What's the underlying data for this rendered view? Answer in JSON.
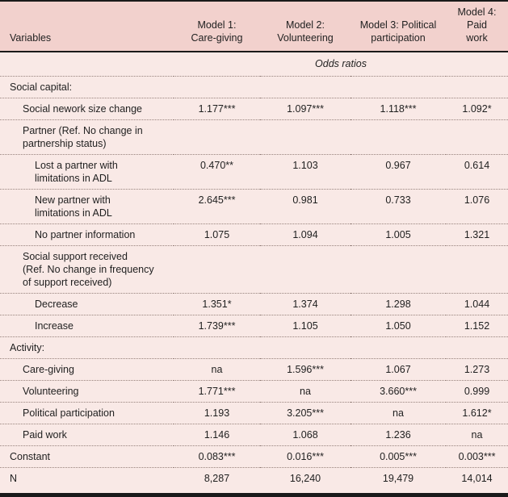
{
  "colors": {
    "header_bg": "#f2d1cd",
    "body_bg": "#f9e9e6",
    "rule_color": "#1a1a1a",
    "dot_color": "#97827c",
    "text_color": "#1f1f1f"
  },
  "table": {
    "columns": [
      "Variables",
      "Model 1:\nCare-giving",
      "Model 2:\nVolunteering",
      "Model 3: Political\nparticipation",
      "Model 4:\nPaid\nwork"
    ],
    "subheader": "Odds ratios",
    "rows": [
      {
        "label": "Social capital:",
        "indent": 0,
        "values": [
          "",
          "",
          "",
          ""
        ]
      },
      {
        "label": "Social nework size change",
        "indent": 1,
        "values": [
          "1.177***",
          "1.097***",
          "1.118***",
          "1.092*"
        ]
      },
      {
        "label": "Partner (Ref. No change in\npartnership status)",
        "indent": 1,
        "values": [
          "",
          "",
          "",
          ""
        ]
      },
      {
        "label": "Lost a partner with\nlimitations in ADL",
        "indent": 2,
        "values": [
          "0.470**",
          "1.103",
          "0.967",
          "0.614"
        ]
      },
      {
        "label": "New partner with\nlimitations in ADL",
        "indent": 2,
        "values": [
          "2.645***",
          "0.981",
          "0.733",
          "1.076"
        ]
      },
      {
        "label": "No partner information",
        "indent": 2,
        "values": [
          "1.075",
          "1.094",
          "1.005",
          "1.321"
        ]
      },
      {
        "label": "Social support received\n(Ref. No change in frequency\nof support received)",
        "indent": 1,
        "values": [
          "",
          "",
          "",
          ""
        ]
      },
      {
        "label": "Decrease",
        "indent": 2,
        "values": [
          "1.351*",
          "1.374",
          "1.298",
          "1.044"
        ]
      },
      {
        "label": "Increase",
        "indent": 2,
        "values": [
          "1.739***",
          "1.105",
          "1.050",
          "1.152"
        ]
      },
      {
        "label": "Activity:",
        "indent": 0,
        "values": [
          "",
          "",
          "",
          ""
        ]
      },
      {
        "label": "Care-giving",
        "indent": 1,
        "values": [
          "na",
          "1.596***",
          "1.067",
          "1.273"
        ]
      },
      {
        "label": "Volunteering",
        "indent": 1,
        "values": [
          "1.771***",
          "na",
          "3.660***",
          "0.999"
        ]
      },
      {
        "label": "Political participation",
        "indent": 1,
        "values": [
          "1.193",
          "3.205***",
          "na",
          "1.612*"
        ]
      },
      {
        "label": "Paid work",
        "indent": 1,
        "values": [
          "1.146",
          "1.068",
          "1.236",
          "na"
        ]
      },
      {
        "label": "Constant",
        "indent": 0,
        "values": [
          "0.083***",
          "0.016***",
          "0.005***",
          "0.003***"
        ]
      },
      {
        "label": "N",
        "indent": 0,
        "values": [
          "8,287",
          "16,240",
          "19,479",
          "14,014"
        ]
      }
    ]
  }
}
